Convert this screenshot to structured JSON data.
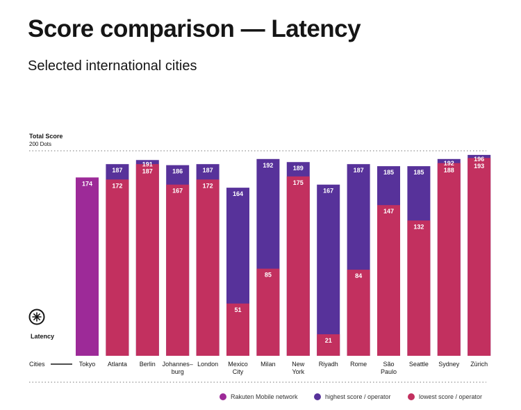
{
  "title": "Score comparison  — Latency",
  "subtitle": "Selected international cities",
  "chart_data": {
    "type": "bar",
    "subtype": "overlaid",
    "y_axis_label": "Total Score",
    "y_axis_sublabel": "200 Dots",
    "ylim": [
      0,
      200
    ],
    "category_label": "Cities",
    "metric_label": "Latency",
    "metric_icon": "latency-icon",
    "categories": [
      "Tokyo",
      "Atlanta",
      "Berlin",
      "Johannes–burg",
      "London",
      "Mexico City",
      "Milan",
      "New York",
      "Riyadh",
      "Rome",
      "São Paulo",
      "Seattle",
      "Sydney",
      "Zürich"
    ],
    "series": [
      {
        "name": "Rakuten Mobile network",
        "color": "#9d2a98",
        "values": [
          174,
          null,
          null,
          null,
          null,
          null,
          null,
          null,
          null,
          null,
          null,
          null,
          null,
          null
        ]
      },
      {
        "name": "highest score / operator",
        "color": "#57329a",
        "values": [
          null,
          187,
          191,
          186,
          187,
          164,
          192,
          189,
          167,
          187,
          185,
          185,
          192,
          196
        ]
      },
      {
        "name": "lowest score / operator",
        "color": "#c2305f",
        "values": [
          null,
          172,
          187,
          167,
          172,
          51,
          85,
          175,
          21,
          84,
          147,
          132,
          188,
          193
        ]
      }
    ]
  }
}
